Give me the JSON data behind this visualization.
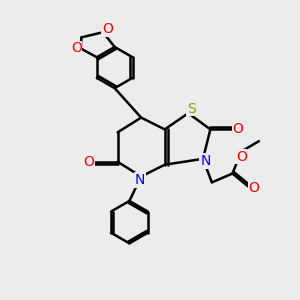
{
  "background_color": "#ececec",
  "atom_colors": {
    "C": "#000000",
    "N": "#0000ff",
    "O": "#ff0000",
    "S": "#999900",
    "H": "#000000"
  },
  "bond_color": "#000000",
  "bond_width": 1.8,
  "figsize": [
    3.0,
    3.0
  ],
  "dpi": 100
}
